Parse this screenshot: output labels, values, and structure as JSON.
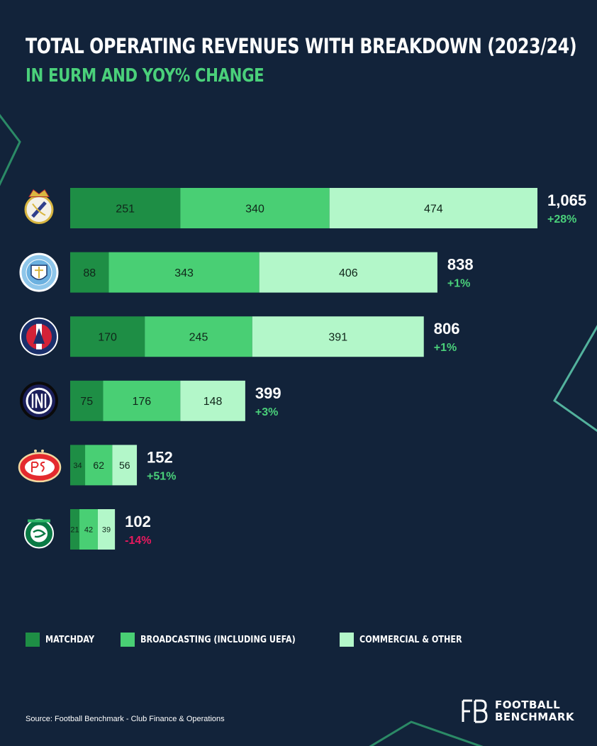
{
  "header": {
    "title": "TOTAL OPERATING REVENUES WITH BREAKDOWN (2023/24)",
    "subtitle": "IN EURM AND YOY% CHANGE"
  },
  "colors": {
    "background": "#12233a",
    "matchday": "#1e8e45",
    "broadcasting": "#49cf74",
    "commercial": "#b3f7c9",
    "positive": "#4ad07a",
    "negative": "#e8195e",
    "neon": "#3fe08a"
  },
  "chart_data": {
    "type": "bar",
    "orientation": "horizontal",
    "stacked": true,
    "title": "TOTAL OPERATING REVENUES WITH BREAKDOWN (2023/24)",
    "subtitle": "IN EURM AND YOY% CHANGE",
    "categories": [
      "Real Madrid",
      "Manchester City",
      "Paris Saint-Germain",
      "Inter",
      "PSV",
      "Sporting CP"
    ],
    "category_icons": [
      "real-madrid-crest-icon",
      "manchester-city-crest-icon",
      "psg-crest-icon",
      "inter-crest-icon",
      "psv-crest-icon",
      "sporting-cp-crest-icon"
    ],
    "series": [
      {
        "name": "MATCHDAY",
        "color": "#1e8e45",
        "values": [
          251,
          88,
          170,
          75,
          34,
          21
        ]
      },
      {
        "name": "BROADCASTING (INCLUDING UEFA)",
        "color": "#49cf74",
        "values": [
          340,
          343,
          245,
          176,
          62,
          42
        ]
      },
      {
        "name": "COMMERCIAL & OTHER",
        "color": "#b3f7c9",
        "values": [
          474,
          406,
          391,
          148,
          56,
          39
        ]
      }
    ],
    "totals": [
      "1,065",
      "838",
      "806",
      "399",
      "152",
      "102"
    ],
    "yoy_change": [
      "+28%",
      "+1%",
      "+1%",
      "+3%",
      "+51%",
      "-14%"
    ],
    "yoy_sign": [
      "positive",
      "positive",
      "positive",
      "positive",
      "positive",
      "negative"
    ],
    "xlim": [
      0,
      1065
    ],
    "grid": false,
    "legend_position": "bottom-left"
  },
  "footer": {
    "source": "Source: Football Benchmark - Club Finance & Operations",
    "brand_line1": "FOOTBALL",
    "brand_line2": "BENCHMARK",
    "brand_logo_icon": "fb-monogram-icon"
  }
}
